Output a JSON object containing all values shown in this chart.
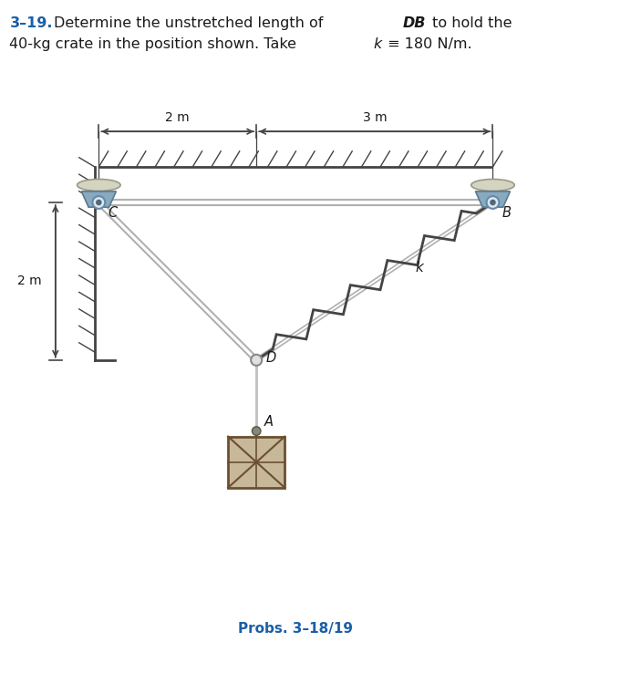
{
  "title_num": "3–19.",
  "title_rest_l1": "  Determine the unstretched length of ",
  "title_DB": "DB",
  "title_end_l1": " to hold the",
  "title_l2": "40-kg crate in the position shown. Take ",
  "title_k": "k",
  "title_eq": " ≡ 180 N/m.",
  "caption": "Probs. 3–18/19",
  "label_2m_top": "2 m",
  "label_3m_top": "3 m",
  "label_2m_left": "2 m",
  "label_D": "D",
  "label_A": "A",
  "label_C": "C",
  "label_B": "B",
  "label_k": "k",
  "C": [
    0.0,
    0.0
  ],
  "B": [
    5.0,
    0.0
  ],
  "D": [
    2.0,
    -2.0
  ],
  "A_pt": [
    2.0,
    -2.9
  ],
  "bg_color": "#ffffff",
  "rope_color": "#b8b8b8",
  "spring_color": "#555555",
  "text_color_blue": "#1a5fa8",
  "text_color_black": "#1a1a1a",
  "wall_color": "#444444",
  "pulley_cap_color": "#d4d4c0",
  "pulley_body_color": "#88aabf",
  "crate_fill": "#c8b89a",
  "crate_edge": "#6a5030"
}
